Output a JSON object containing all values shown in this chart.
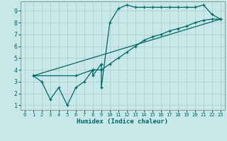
{
  "xlabel": "Humidex (Indice chaleur)",
  "background_color": "#c6e8e8",
  "grid_color": "#b0c8c8",
  "line_color": "#006666",
  "xlim": [
    -0.5,
    23.5
  ],
  "ylim": [
    0.6,
    9.8
  ],
  "xticks": [
    0,
    1,
    2,
    3,
    4,
    5,
    6,
    7,
    8,
    9,
    10,
    11,
    12,
    13,
    14,
    15,
    16,
    17,
    18,
    19,
    20,
    21,
    22,
    23
  ],
  "yticks": [
    1,
    2,
    3,
    4,
    5,
    6,
    7,
    8,
    9
  ],
  "line1_x": [
    1,
    2,
    3,
    4,
    5,
    6,
    7,
    8,
    8,
    9,
    9,
    10,
    11,
    12,
    13,
    14,
    15,
    16,
    17,
    18,
    19,
    20,
    21,
    22,
    23
  ],
  "line1_y": [
    3.5,
    3.0,
    1.5,
    2.5,
    1.0,
    2.5,
    3.0,
    4.0,
    3.5,
    4.5,
    2.5,
    8.0,
    9.2,
    9.5,
    9.3,
    9.3,
    9.3,
    9.3,
    9.3,
    9.3,
    9.3,
    9.3,
    9.5,
    8.7,
    8.3
  ],
  "line2_x": [
    1,
    6,
    8,
    9,
    10,
    11,
    12,
    13,
    14,
    15,
    16,
    17,
    18,
    19,
    20,
    21,
    22,
    23
  ],
  "line2_y": [
    3.5,
    3.5,
    4.0,
    4.0,
    4.5,
    5.0,
    5.5,
    6.0,
    6.5,
    6.8,
    7.0,
    7.3,
    7.5,
    7.7,
    8.0,
    8.2,
    8.3,
    8.3
  ],
  "line3_x": [
    1,
    23
  ],
  "line3_y": [
    3.5,
    8.3
  ]
}
